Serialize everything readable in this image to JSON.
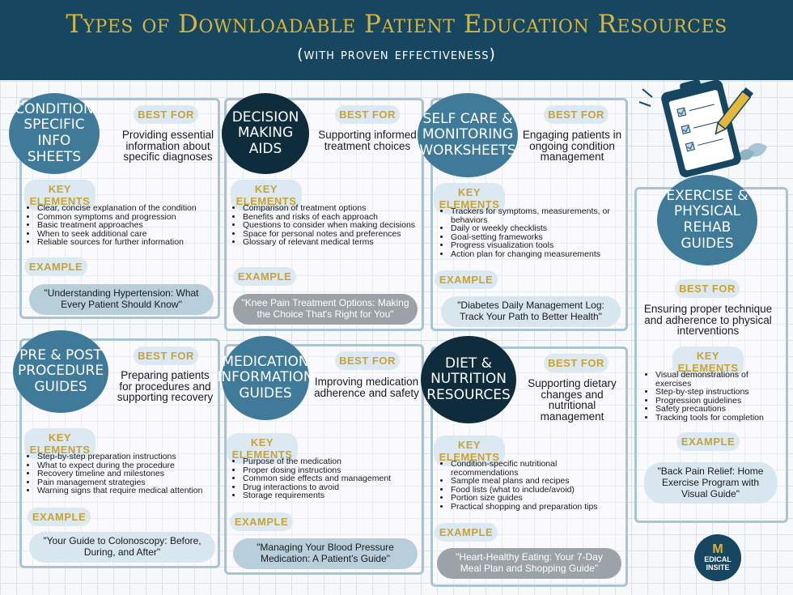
{
  "header": {
    "title": "Types of Downloadable Patient Education Resources",
    "subtitle": "(with proven effectiveness)"
  },
  "labels": {
    "best_for": "BEST FOR",
    "key_elements": "KEY ELEMENTS",
    "example": "EXAMPLE"
  },
  "cards": [
    {
      "title": "CONDITION SPECIFIC INFO SHEETS",
      "best_for": "Providing essential information about specific diagnoses",
      "elements": [
        "Clear, concise explanation of the condition",
        "Common symptoms and progression",
        "Basic treatment approaches",
        "When to seek additional care",
        "Reliable sources for further information"
      ],
      "example": "\"Understanding Hypertension: What Every Patient Should Know\""
    },
    {
      "title": "DECISION MAKING AIDS",
      "best_for": "Supporting informed treatment choices",
      "elements": [
        "Comparison of treatment options",
        "Benefits and risks of each approach",
        "Questions to consider when making decisions",
        "Space for personal notes and preferences",
        "Glossary of relevant medical terms"
      ],
      "example": "\"Knee Pain Treatment Options: Making the Choice That's Right for You\""
    },
    {
      "title": "SELF CARE & MONITORING WORKSHEETS",
      "best_for": "Engaging patients in ongoing condition management",
      "elements": [
        "Trackers for symptoms, measurements, or behaviors",
        "Daily or weekly checklists",
        "Goal-setting frameworks",
        "Progress visualization tools",
        "Action plan for changing measurements"
      ],
      "example": "\"Diabetes Daily Management Log: Track Your Path to Better Health\""
    },
    {
      "title": "EXERCISE & PHYSICAL REHAB GUIDES",
      "best_for": "Ensuring proper technique and adherence to physical interventions",
      "elements": [
        "Visual demonstrations of exercises",
        "Step-by-step instructions",
        "Progression guidelines",
        "Safety precautions",
        "Tracking tools for completion"
      ],
      "example": "\"Back Pain Relief: Home Exercise Program with Visual Guide\""
    },
    {
      "title": "PRE & POST PROCEDURE GUIDES",
      "best_for": "Preparing patients for procedures and supporting recovery",
      "elements": [
        "Step-by-step preparation instructions",
        "What to expect during the procedure",
        "Recovery timeline and milestones",
        "Pain management strategies",
        "Warning signs that require medical attention"
      ],
      "example": "\"Your Guide to Colonoscopy: Before, During, and After\""
    },
    {
      "title": "MEDICATION INFORMATION GUIDES",
      "best_for": "Improving medication adherence and safety",
      "elements": [
        "Purpose of the medication",
        "Proper dosing instructions",
        "Common side effects and management",
        "Drug interactions to avoid",
        "Storage requirements"
      ],
      "example": "\"Managing Your Blood Pressure Medication: A Patient's Guide\""
    },
    {
      "title": "DIET & NUTRITION RESOURCES",
      "best_for": "Supporting dietary changes and nutritional management",
      "elements": [
        "Condition-specific nutritional recommendations",
        "Sample meal plans and recipes",
        "Food lists (what to include/avoid)",
        "Portion size guides",
        "Practical shopping and preparation tips"
      ],
      "example": "\"Heart-Healthy Eating: Your 7-Day Meal Plan and Shopping Guide\""
    }
  ],
  "logo": {
    "line1": "EDICAL",
    "line2": "INSITE",
    "mark": "M"
  },
  "colors": {
    "header_bg": "#164660",
    "title_gold": "#d6b43f",
    "blob_mid": "#3f7a98",
    "blob_dark": "#0f2c3c",
    "card_border": "#a9c4d4"
  }
}
